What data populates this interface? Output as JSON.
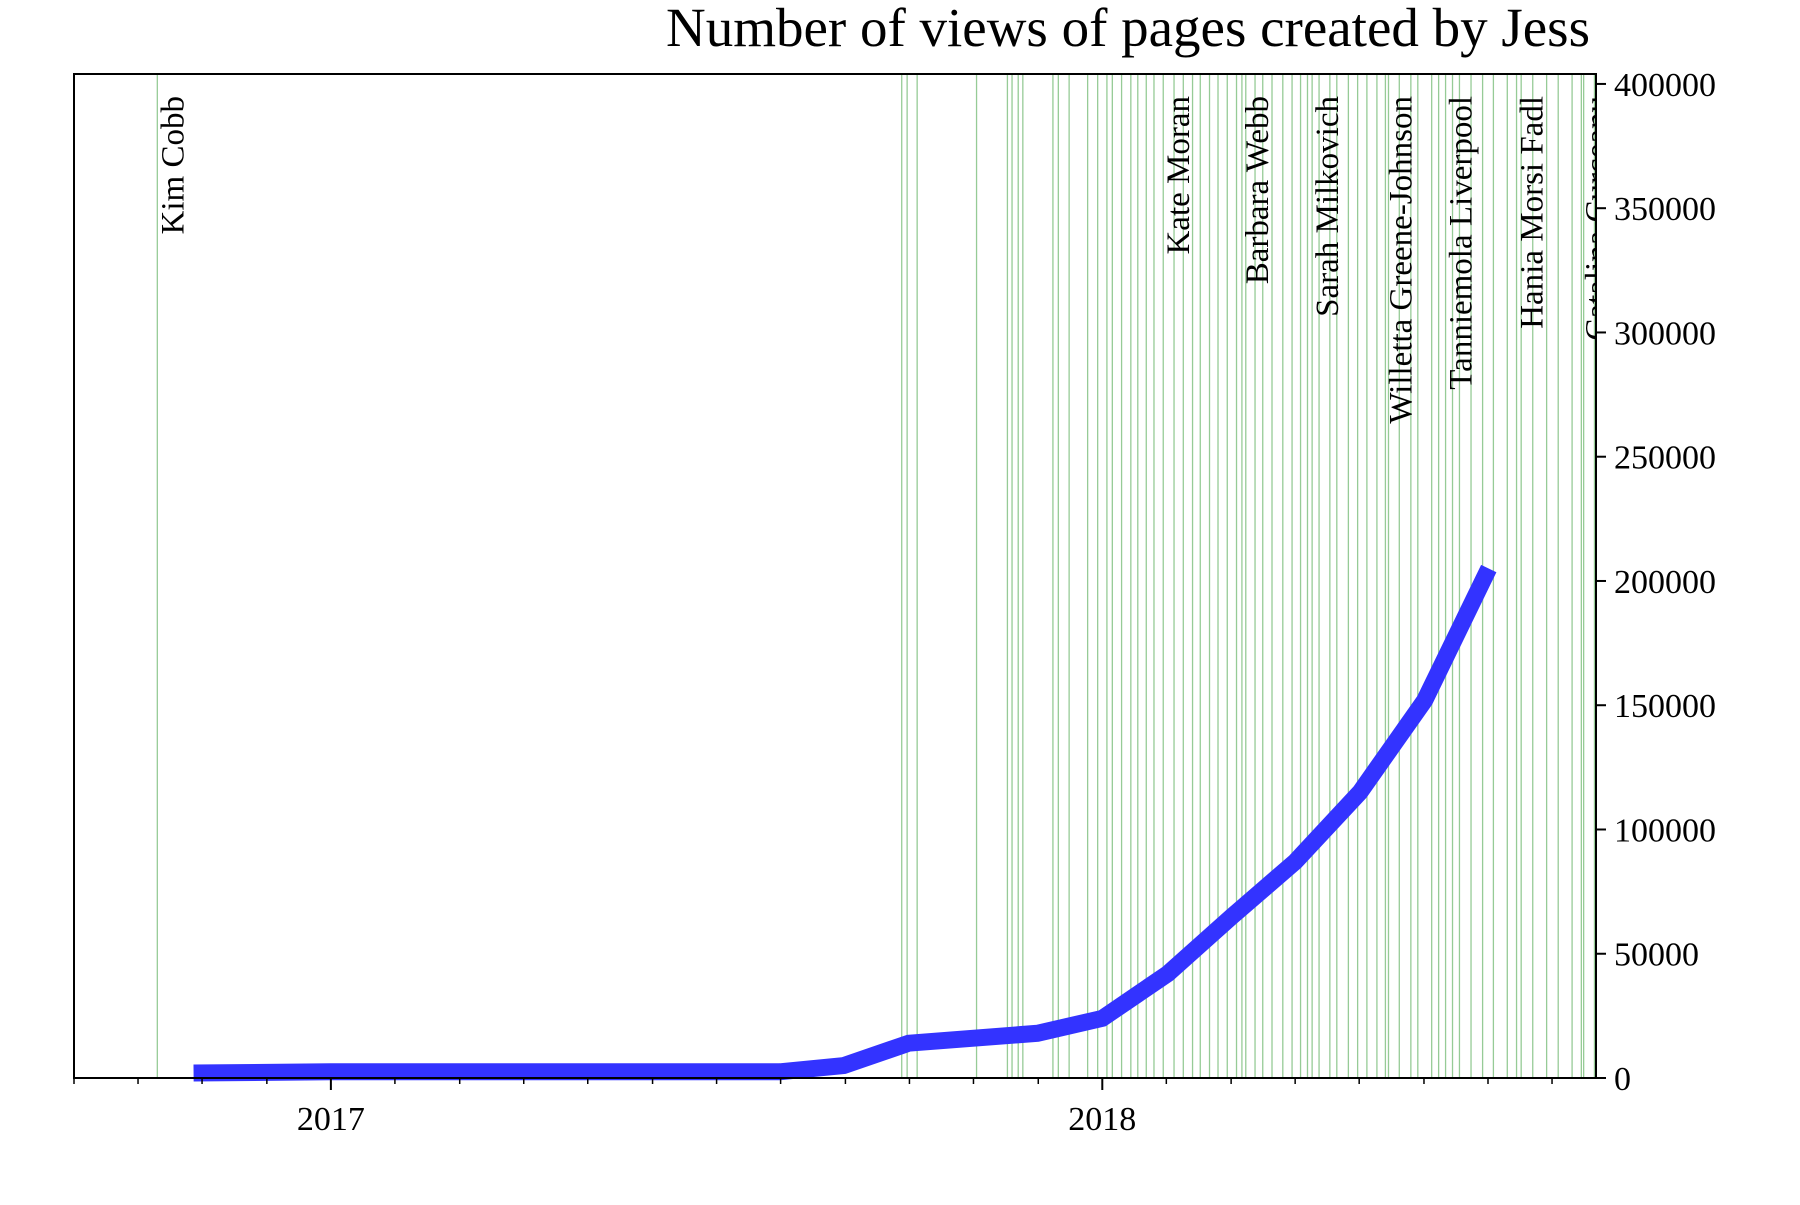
{
  "chart_data": {
    "type": "line",
    "title": "Number of views of pages created by Jess",
    "x": [
      2016.822,
      2017.0,
      2017.582,
      2017.665,
      2017.749,
      2017.916,
      2018.0,
      2018.085,
      2018.168,
      2018.25,
      2018.334,
      2018.418,
      2018.501
    ],
    "series": [
      {
        "color": "#3333ff",
        "values": [
          2000,
          2500,
          2500,
          5000,
          14000,
          18000,
          24000,
          42000,
          65000,
          87000,
          115000,
          152000,
          205000
        ]
      }
    ],
    "xlim": [
      2016.667,
      2018.64
    ],
    "xticks": [
      2017,
      2018
    ],
    "xminorticks": [
      2016.667,
      2016.75,
      2016.833,
      2016.917,
      2017.083,
      2017.167,
      2017.25,
      2017.333,
      2017.417,
      2017.5,
      2017.583,
      2017.667,
      2017.75,
      2017.833,
      2017.917,
      2018.083,
      2018.167,
      2018.25,
      2018.333,
      2018.417,
      2018.5,
      2018.583
    ],
    "ylim": [
      0,
      404000
    ],
    "yticks": [
      0,
      50000,
      100000,
      150000,
      200000,
      250000,
      300000,
      350000,
      400000
    ],
    "yaxis_side": "right",
    "event_color": "#96cb96",
    "event_lines": [
      2017.74,
      2017.747,
      2017.76,
      2017.837,
      2017.877,
      2017.883,
      2017.891,
      2017.897,
      2017.936,
      2017.943,
      2017.957,
      2017.981,
      2017.994,
      2018.006,
      2018.013,
      2018.025,
      2018.037,
      2018.046,
      2018.057,
      2018.067,
      2018.093,
      2018.105,
      2018.117,
      2018.127,
      2018.139,
      2018.15,
      2018.162,
      2018.174,
      2018.186,
      2018.198,
      2018.208,
      2018.22,
      2018.234,
      2018.246,
      2018.257,
      2018.266,
      2018.281,
      2018.295,
      2018.304,
      2018.319,
      2018.331,
      2018.343,
      2018.356,
      2018.371,
      2018.385,
      2018.4,
      2018.409,
      2018.427,
      2018.436,
      2018.454,
      2018.463,
      2018.478,
      2018.493,
      2018.507,
      2018.525,
      2018.543,
      2018.558,
      2018.576,
      2018.591,
      2018.609,
      2018.624,
      2018.638
    ],
    "annotations": [
      {
        "x": 2016.775,
        "text": "Kim Cobb"
      },
      {
        "x": 2018.079,
        "text": "Kate Moran"
      },
      {
        "x": 2018.181,
        "text": "Barbara Webb"
      },
      {
        "x": 2018.272,
        "text": "Sarah Milkovich"
      },
      {
        "x": 2018.367,
        "text": "Willetta Greene-Johnson"
      },
      {
        "x": 2018.445,
        "text": "Tanniemola Liverpool"
      },
      {
        "x": 2018.537,
        "text": "Hania Morsi Fadl"
      },
      {
        "x": 2018.621,
        "text": "Catalina Curceanu"
      }
    ]
  }
}
